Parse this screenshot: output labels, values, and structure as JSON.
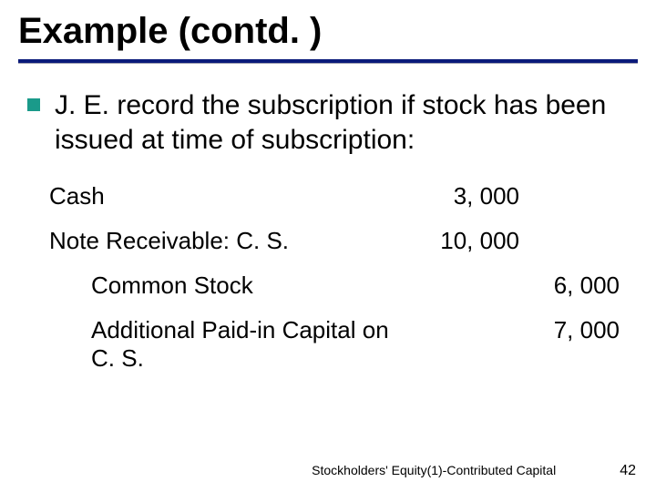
{
  "title": "Example (contd. )",
  "bullet": {
    "text": "J. E. record the subscription if stock has been issued at time of subscription:"
  },
  "journal": {
    "debits": [
      {
        "account": "Cash",
        "amount": "3, 000"
      },
      {
        "account": "Note Receivable: C. S.",
        "amount": "10, 000"
      }
    ],
    "credits": [
      {
        "account": "Common Stock",
        "amount": "6, 000"
      },
      {
        "account": "Additional Paid-in Capital on C. S.",
        "amount": "7, 000"
      }
    ]
  },
  "footer": {
    "text": "Stockholders' Equity(1)-Contributed Capital",
    "page": "42"
  },
  "colors": {
    "underline": "#0a1a7a",
    "bullet": "#1a9a8a",
    "text": "#000000",
    "background": "#ffffff"
  }
}
